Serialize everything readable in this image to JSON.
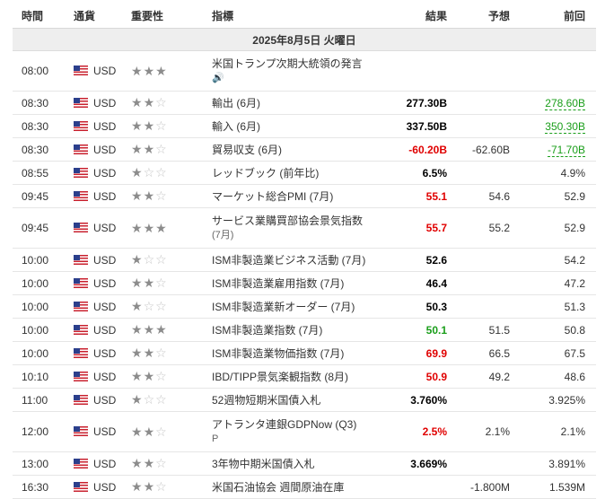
{
  "headers": {
    "time": "時間",
    "currency": "通貨",
    "importance": "重要性",
    "indicator": "指標",
    "actual": "結果",
    "forecast": "予想",
    "previous": "前回"
  },
  "date_label": "2025年8月5日 火曜日",
  "rows": [
    {
      "time": "08:00",
      "currency": "USD",
      "stars": 3,
      "indicator": "米国トランプ次期大統領の発言",
      "sub_icon": "speaker-icon",
      "sub": "🔊",
      "actual": "",
      "forecast": "",
      "previous": "",
      "tall": true
    },
    {
      "time": "08:30",
      "currency": "USD",
      "stars": 2,
      "indicator": "輸出 (6月)",
      "sub": "",
      "actual": "277.30B",
      "forecast": "",
      "previous": "278.60B",
      "actual_color": "#000000",
      "previous_style": "green-underline"
    },
    {
      "time": "08:30",
      "currency": "USD",
      "stars": 2,
      "indicator": "輸入 (6月)",
      "sub": "",
      "actual": "337.50B",
      "forecast": "",
      "previous": "350.30B",
      "actual_color": "#000000",
      "previous_style": "green-underline"
    },
    {
      "time": "08:30",
      "currency": "USD",
      "stars": 2,
      "indicator": "貿易収支 (6月)",
      "sub": "",
      "actual": "-60.20B",
      "forecast": "-62.60B",
      "previous": "-71.70B",
      "actual_color": "#e00000",
      "previous_style": "green-underline"
    },
    {
      "time": "08:55",
      "currency": "USD",
      "stars": 1,
      "indicator": "レッドブック (前年比)",
      "sub": "",
      "actual": "6.5%",
      "forecast": "",
      "previous": "4.9%",
      "actual_color": "#000000"
    },
    {
      "time": "09:45",
      "currency": "USD",
      "stars": 2,
      "indicator": "マーケット総合PMI (7月)",
      "sub": "",
      "actual": "55.1",
      "forecast": "54.6",
      "previous": "52.9",
      "actual_color": "#e00000"
    },
    {
      "time": "09:45",
      "currency": "USD",
      "stars": 3,
      "indicator": "サービス業購買部協会景気指数",
      "sub": "(7月)",
      "actual": "55.7",
      "forecast": "55.2",
      "previous": "52.9",
      "actual_color": "#e00000",
      "tall": true
    },
    {
      "time": "10:00",
      "currency": "USD",
      "stars": 1,
      "indicator": "ISM非製造業ビジネス活動 (7月)",
      "sub": "",
      "actual": "52.6",
      "forecast": "",
      "previous": "54.2",
      "actual_color": "#000000"
    },
    {
      "time": "10:00",
      "currency": "USD",
      "stars": 2,
      "indicator": "ISM非製造業雇用指数 (7月)",
      "sub": "",
      "actual": "46.4",
      "forecast": "",
      "previous": "47.2",
      "actual_color": "#000000"
    },
    {
      "time": "10:00",
      "currency": "USD",
      "stars": 1,
      "indicator": "ISM非製造業新オーダー (7月)",
      "sub": "",
      "actual": "50.3",
      "forecast": "",
      "previous": "51.3",
      "actual_color": "#000000"
    },
    {
      "time": "10:00",
      "currency": "USD",
      "stars": 3,
      "indicator": "ISM非製造業指数 (7月)",
      "sub": "",
      "actual": "50.1",
      "forecast": "51.5",
      "previous": "50.8",
      "actual_color": "#1a9e1a"
    },
    {
      "time": "10:00",
      "currency": "USD",
      "stars": 2,
      "indicator": "ISM非製造業物価指数 (7月)",
      "sub": "",
      "actual": "69.9",
      "forecast": "66.5",
      "previous": "67.5",
      "actual_color": "#e00000"
    },
    {
      "time": "10:10",
      "currency": "USD",
      "stars": 2,
      "indicator": "IBD/TIPP景気楽観指数 (8月)",
      "sub": "",
      "actual": "50.9",
      "forecast": "49.2",
      "previous": "48.6",
      "actual_color": "#e00000"
    },
    {
      "time": "11:00",
      "currency": "USD",
      "stars": 1,
      "indicator": "52週物短期米国債入札",
      "sub": "",
      "actual": "3.760%",
      "forecast": "",
      "previous": "3.925%",
      "actual_color": "#000000"
    },
    {
      "time": "12:00",
      "currency": "USD",
      "stars": 2,
      "indicator": "アトランタ連銀GDPNow (Q3)",
      "sub_icon": "preliminary-icon",
      "sub": "P",
      "actual": "2.5%",
      "forecast": "2.1%",
      "previous": "2.1%",
      "actual_color": "#e00000",
      "tall": true
    },
    {
      "time": "13:00",
      "currency": "USD",
      "stars": 2,
      "indicator": "3年物中期米国債入札",
      "sub": "",
      "actual": "3.669%",
      "forecast": "",
      "previous": "3.891%",
      "actual_color": "#000000"
    },
    {
      "time": "16:30",
      "currency": "USD",
      "stars": 2,
      "indicator": "米国石油協会 週間原油在庫",
      "sub": "",
      "actual": "",
      "forecast": "-1.800M",
      "previous": "1.539M",
      "actual_color": "#000000"
    }
  ]
}
